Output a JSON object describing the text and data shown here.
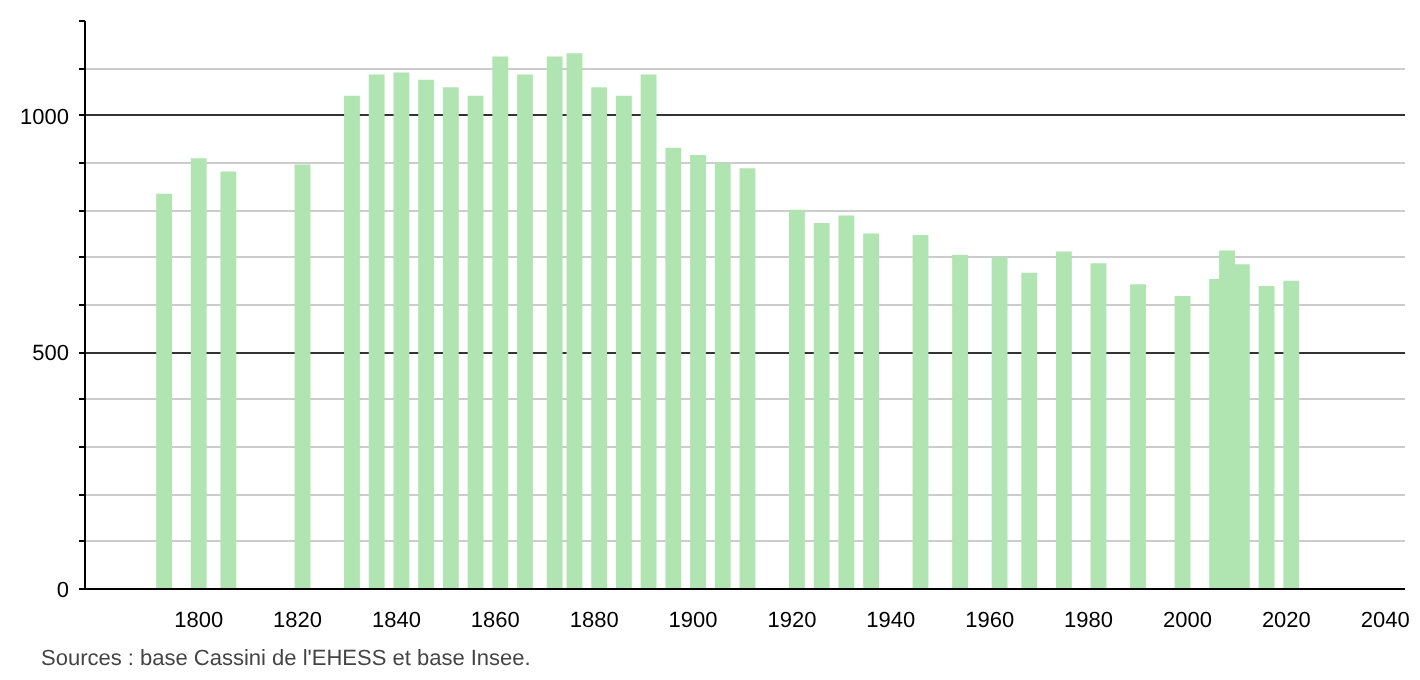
{
  "chart_data": {
    "type": "bar",
    "x": [
      1793,
      1800,
      1806,
      1821,
      1831,
      1836,
      1841,
      1846,
      1851,
      1856,
      1861,
      1866,
      1872,
      1876,
      1881,
      1886,
      1891,
      1896,
      1901,
      1906,
      1911,
      1921,
      1926,
      1931,
      1936,
      1946,
      1954,
      1962,
      1968,
      1975,
      1982,
      1990,
      1999,
      2006,
      2008,
      2011,
      2016,
      2021
    ],
    "values": [
      835,
      910,
      882,
      897,
      1042,
      1087,
      1091,
      1076,
      1060,
      1042,
      1125,
      1087,
      1125,
      1132,
      1060,
      1042,
      1087,
      932,
      917,
      900,
      889,
      801,
      773,
      789,
      751,
      748,
      706,
      701,
      668,
      713,
      688,
      644,
      619,
      655,
      715,
      686,
      640,
      651
    ],
    "color": "#b0e4b0",
    "xlim": [
      1777,
      2044
    ],
    "xticks": [
      1800,
      1820,
      1840,
      1860,
      1880,
      1900,
      1920,
      1940,
      1960,
      1980,
      2000,
      2020,
      2040
    ],
    "ylim": [
      0,
      1200
    ],
    "yticks": [
      0,
      {
        "value": 100,
        "label": null
      },
      {
        "value": 200,
        "label": null
      },
      {
        "value": 300,
        "label": null
      },
      {
        "value": 400,
        "label": null
      },
      500,
      {
        "value": 600,
        "label": null
      },
      {
        "value": 700,
        "label": null
      },
      {
        "value": 800,
        "label": null
      },
      {
        "value": 900,
        "label": null
      },
      1000,
      {
        "value": 1100,
        "label": null
      },
      {
        "value": 1200,
        "label": null
      }
    ],
    "grid": "y",
    "annotations": [
      "Sources : base Cassini de l'EHESS et base Insee."
    ]
  }
}
